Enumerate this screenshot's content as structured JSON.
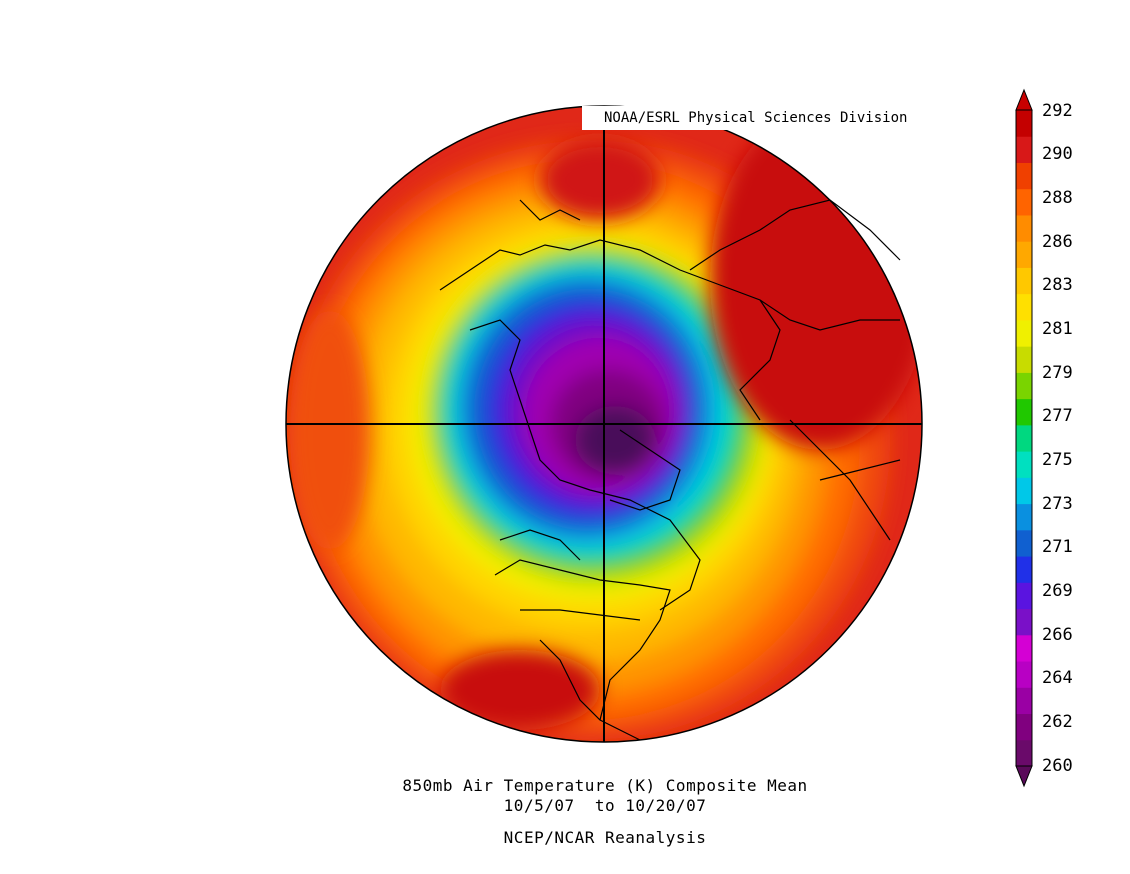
{
  "credit": "NOAA/ESRL Physical Sciences Division",
  "caption": {
    "line1": "850mb Air Temperature (K) Composite Mean",
    "line2": "10/5/07  to 10/20/07",
    "line3": "NCEP/NCAR Reanalysis"
  },
  "projection": "north-polar-stereographic",
  "colorbar": {
    "labels": [
      "292",
      "290",
      "288",
      "286",
      "283",
      "281",
      "279",
      "277",
      "275",
      "273",
      "271",
      "269",
      "266",
      "264",
      "262",
      "260"
    ],
    "colors": [
      "#6a0a6a",
      "#80007f",
      "#9a00a4",
      "#b800c4",
      "#d400d4",
      "#7a10c8",
      "#5a14e0",
      "#2030e8",
      "#1060d0",
      "#0a90e0",
      "#00c8e8",
      "#00e0c0",
      "#00d880",
      "#20c800",
      "#7ad400",
      "#c8dc00",
      "#f0f000",
      "#ffe000",
      "#ffc800",
      "#ffa800",
      "#ff8c00",
      "#ff6400",
      "#f04000",
      "#d81818",
      "#c40000"
    ]
  },
  "field_description_colors": {
    "cold_core": "#4a0a5a",
    "ocean_warm": "#e03010"
  }
}
